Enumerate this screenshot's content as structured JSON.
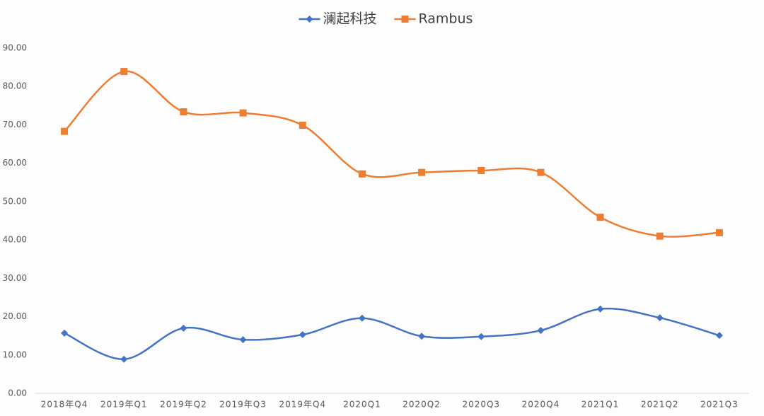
{
  "chart_data": {
    "type": "line",
    "categories": [
      "2018年Q4",
      "2019年Q1",
      "2019年Q2",
      "2019年Q3",
      "2019年Q4",
      "2020Q1",
      "2020Q2",
      "2020Q3",
      "2020Q4",
      "2021Q1",
      "2021Q2",
      "2021Q3"
    ],
    "series": [
      {
        "name": "澜起科技",
        "color": "#4472c4",
        "marker": "diamond",
        "values": [
          15.7,
          8.9,
          17.0,
          14.0,
          15.3,
          19.6,
          14.9,
          14.8,
          16.4,
          22.0,
          19.7,
          15.1
        ]
      },
      {
        "name": "Rambus",
        "color": "#ed7d31",
        "marker": "square",
        "values": [
          68.3,
          83.9,
          73.4,
          73.1,
          69.9,
          57.2,
          57.6,
          58.1,
          57.6,
          45.9,
          41.0,
          41.9
        ]
      }
    ],
    "ylim": [
      0,
      90
    ],
    "yticks": [
      {
        "value": 0,
        "label": "0.00"
      },
      {
        "value": 10,
        "label": "10.00"
      },
      {
        "value": 20,
        "label": "20.00"
      },
      {
        "value": 30,
        "label": "30.00"
      },
      {
        "value": 40,
        "label": "40.00"
      },
      {
        "value": 50,
        "label": "50.00"
      },
      {
        "value": 60,
        "label": "60.00"
      },
      {
        "value": 70,
        "label": "70.00"
      },
      {
        "value": 80,
        "label": "80.00"
      },
      {
        "value": 90,
        "label": "90.00"
      }
    ],
    "smooth": true,
    "grid": false,
    "legend": "top"
  }
}
